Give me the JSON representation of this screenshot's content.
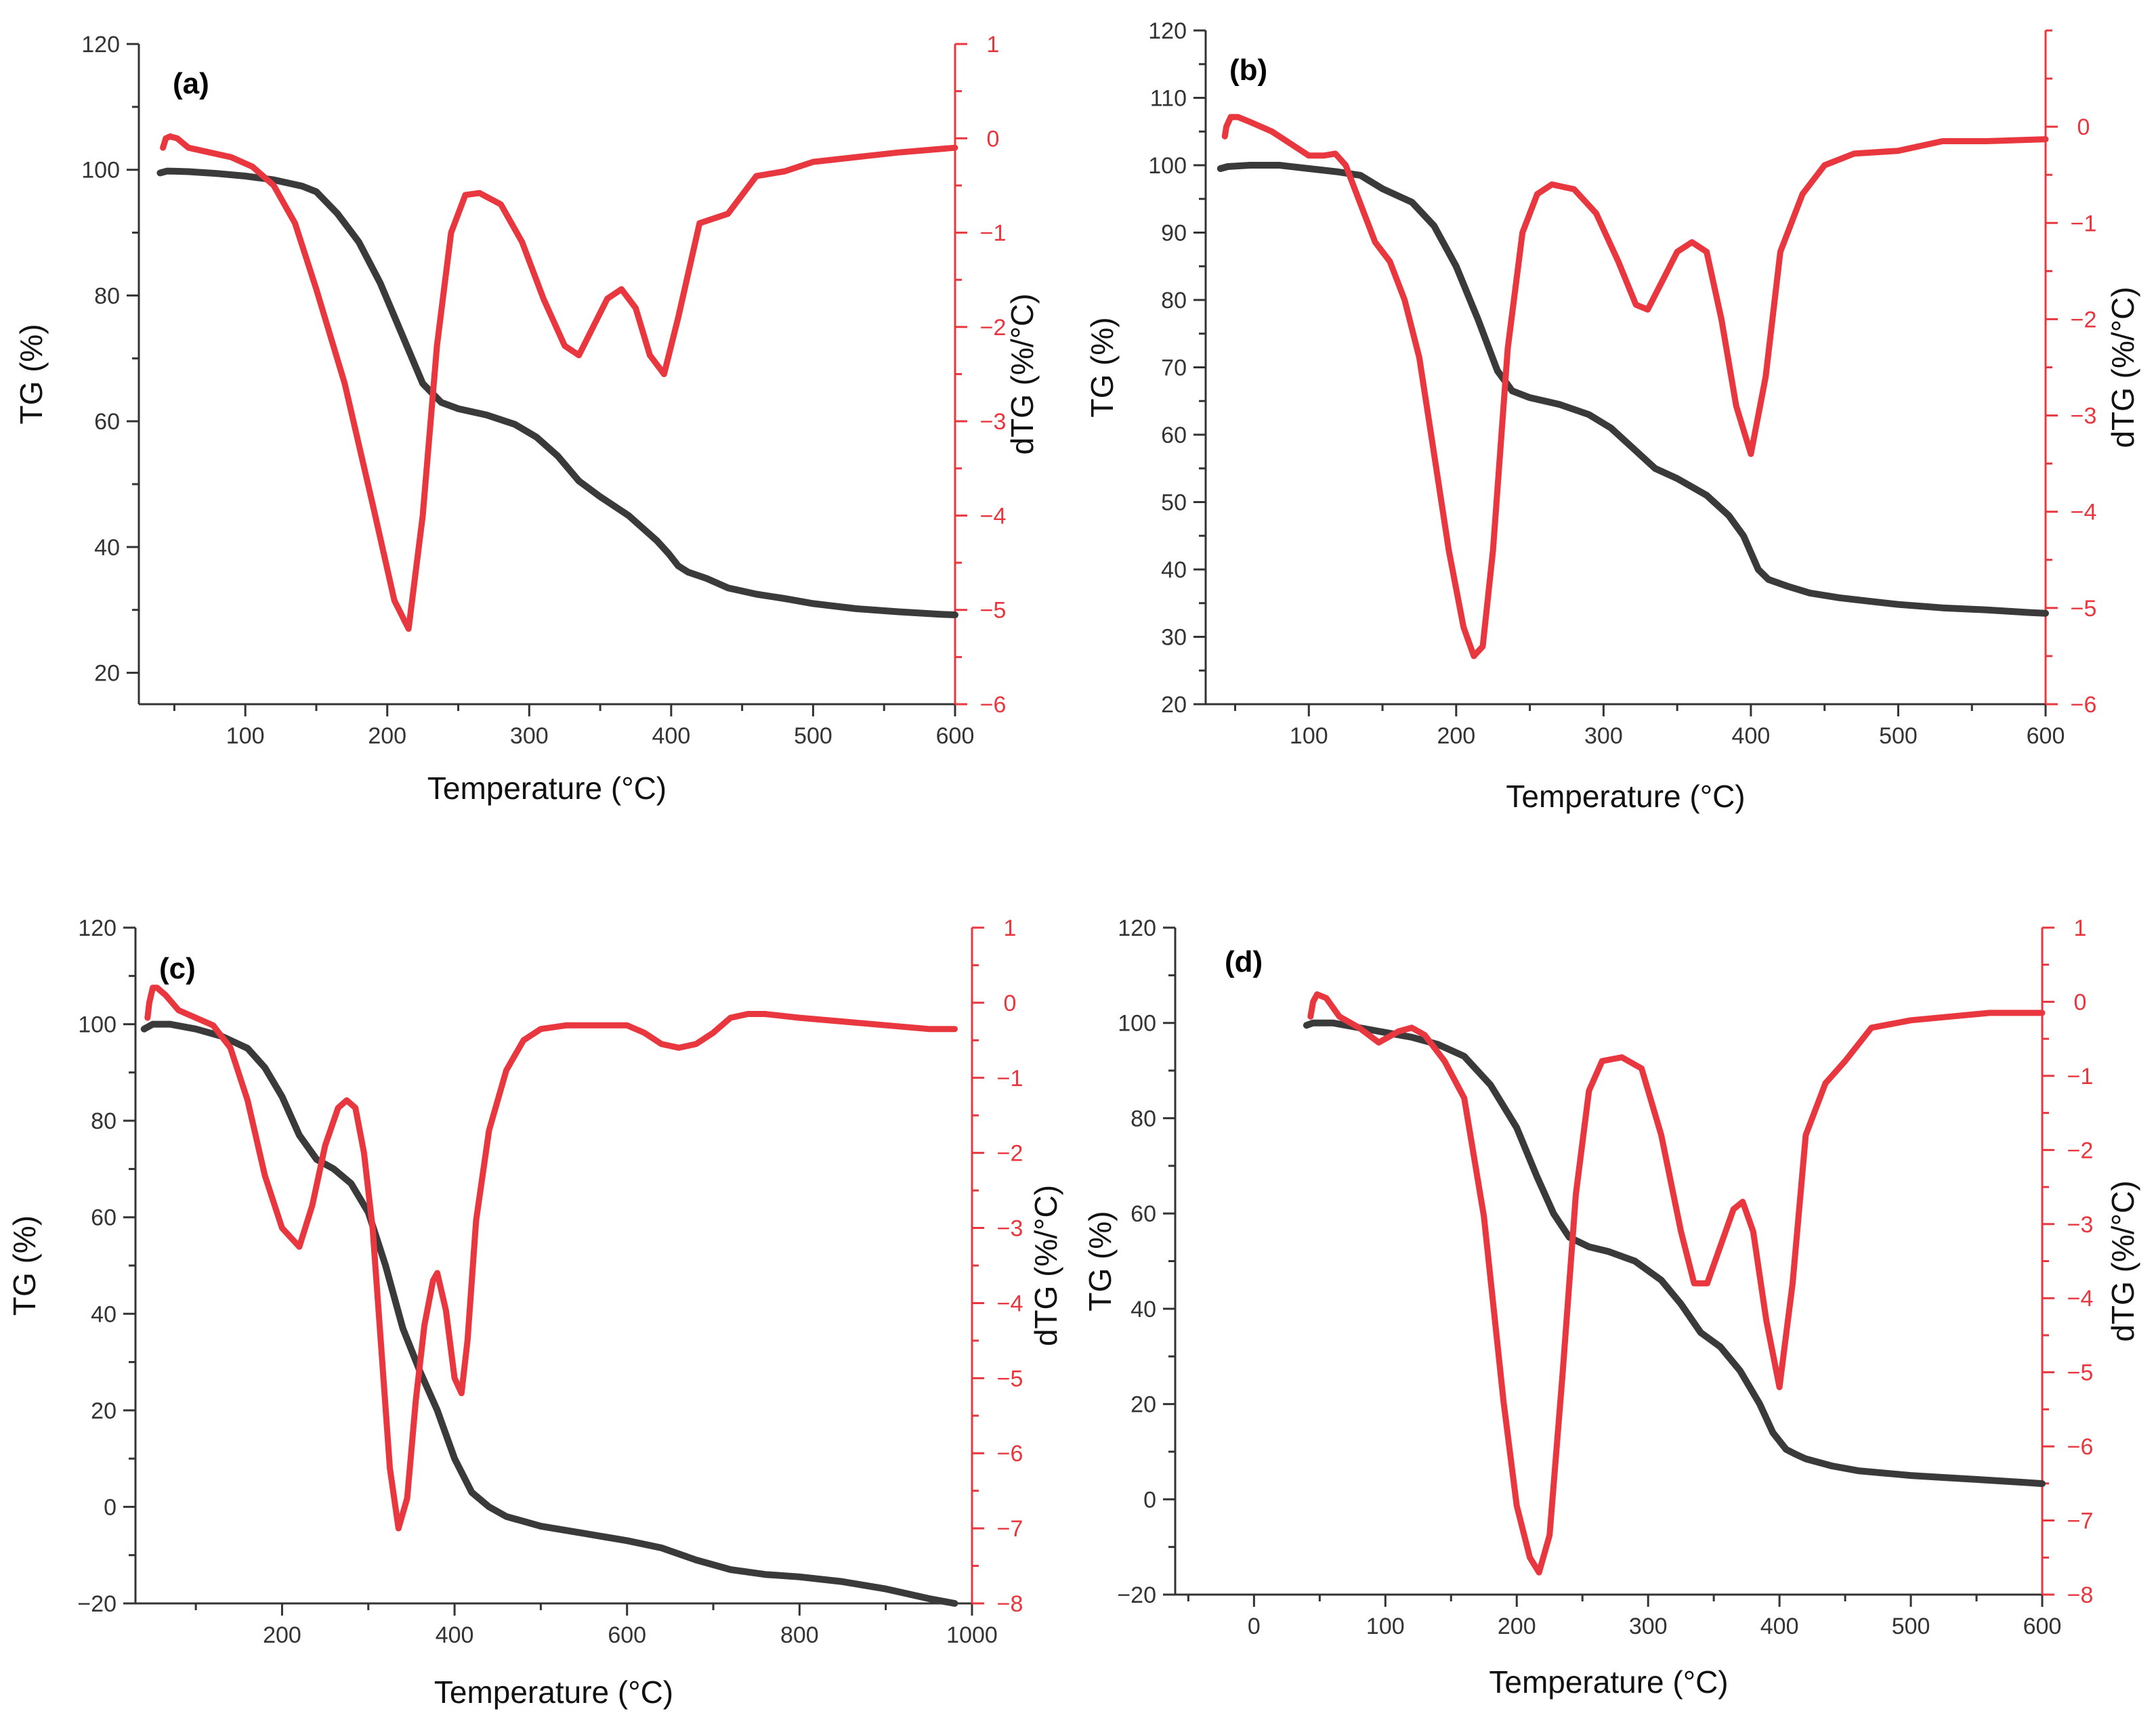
{
  "colors": {
    "tg": "#3a3a3a",
    "dtg": "#e8373e",
    "axis": "#333333"
  },
  "chart_data": [
    {
      "type": "line",
      "label": "(a)",
      "xlabel": "Temperature (°C)",
      "ylabel": "TG (%)",
      "y2label": "dTG (%/°C)",
      "xlim": [
        25,
        600
      ],
      "ylim": [
        15,
        120
      ],
      "y2lim": [
        -6,
        1
      ],
      "xticks": [
        100,
        200,
        300,
        400,
        500,
        600
      ],
      "yticks": [
        20,
        40,
        60,
        80,
        100,
        120
      ],
      "y2ticks": [
        -6,
        -5,
        -4,
        -3,
        -2,
        -1,
        0,
        1
      ],
      "series": [
        {
          "name": "TG",
          "axis": "left",
          "x": [
            40,
            45,
            60,
            80,
            100,
            120,
            140,
            150,
            165,
            180,
            195,
            210,
            225,
            238,
            250,
            270,
            290,
            305,
            320,
            335,
            350,
            370,
            390,
            398,
            405,
            412,
            425,
            440,
            460,
            480,
            500,
            530,
            560,
            590,
            600
          ],
          "y": [
            99.5,
            99.8,
            99.7,
            99.4,
            99.0,
            98.4,
            97.4,
            96.5,
            93.0,
            88.5,
            82.0,
            74.0,
            66.0,
            63.0,
            62.0,
            61.0,
            59.5,
            57.5,
            54.5,
            50.5,
            48.0,
            45.0,
            41.0,
            39.0,
            37.0,
            36.0,
            35.0,
            33.5,
            32.5,
            31.8,
            31.0,
            30.2,
            29.7,
            29.3,
            29.2
          ]
        },
        {
          "name": "dTG",
          "axis": "right",
          "x": [
            42,
            44,
            47,
            52,
            60,
            75,
            90,
            105,
            120,
            135,
            150,
            170,
            190,
            205,
            215,
            225,
            235,
            245,
            255,
            265,
            280,
            295,
            310,
            325,
            335,
            345,
            355,
            365,
            375,
            385,
            395,
            405,
            420,
            440,
            460,
            480,
            500,
            530,
            560,
            600
          ],
          "y": [
            -0.1,
            0.0,
            0.02,
            0.0,
            -0.1,
            -0.15,
            -0.2,
            -0.3,
            -0.5,
            -0.9,
            -1.6,
            -2.6,
            -3.9,
            -4.9,
            -5.2,
            -4.0,
            -2.2,
            -1.0,
            -0.6,
            -0.58,
            -0.7,
            -1.1,
            -1.7,
            -2.2,
            -2.3,
            -2.0,
            -1.7,
            -1.6,
            -1.8,
            -2.3,
            -2.5,
            -1.9,
            -0.9,
            -0.8,
            -0.4,
            -0.35,
            -0.25,
            -0.2,
            -0.15,
            -0.1
          ]
        }
      ]
    },
    {
      "type": "line",
      "label": "(b)",
      "xlabel": "Temperature (°C)",
      "ylabel": "TG (%)",
      "y2label": "dTG (%/°C)",
      "xlim": [
        30,
        600
      ],
      "ylim": [
        20,
        120
      ],
      "y2lim": [
        -6,
        1
      ],
      "xticks": [
        100,
        200,
        300,
        400,
        500,
        600
      ],
      "yticks": [
        20,
        30,
        40,
        50,
        60,
        70,
        80,
        90,
        100,
        110,
        120
      ],
      "y2ticks": [
        -6,
        -5,
        -4,
        -3,
        -2,
        -1,
        0
      ],
      "series": [
        {
          "name": "TG",
          "axis": "left",
          "x": [
            40,
            45,
            60,
            80,
            100,
            120,
            135,
            150,
            170,
            185,
            200,
            215,
            228,
            238,
            250,
            270,
            290,
            305,
            320,
            335,
            350,
            370,
            385,
            395,
            405,
            412,
            425,
            440,
            460,
            480,
            500,
            530,
            560,
            590,
            600
          ],
          "y": [
            99.5,
            99.8,
            100.0,
            100.0,
            99.5,
            99.0,
            98.5,
            96.5,
            94.5,
            91.0,
            85.0,
            77.0,
            69.5,
            66.5,
            65.5,
            64.5,
            63.0,
            61.0,
            58.0,
            55.0,
            53.5,
            51.0,
            48.0,
            45.0,
            40.0,
            38.5,
            37.5,
            36.5,
            35.8,
            35.3,
            34.8,
            34.3,
            34.0,
            33.6,
            33.5
          ]
        },
        {
          "name": "dTG",
          "axis": "right",
          "x": [
            43,
            44,
            47,
            52,
            60,
            75,
            90,
            100,
            110,
            118,
            125,
            135,
            145,
            155,
            165,
            175,
            185,
            195,
            205,
            212,
            218,
            225,
            235,
            245,
            255,
            265,
            280,
            295,
            310,
            322,
            330,
            340,
            350,
            360,
            370,
            380,
            390,
            400,
            410,
            420,
            435,
            450,
            470,
            500,
            530,
            560,
            600
          ],
          "y": [
            -0.1,
            0.0,
            0.1,
            0.1,
            0.05,
            -0.05,
            -0.2,
            -0.3,
            -0.3,
            -0.28,
            -0.4,
            -0.8,
            -1.2,
            -1.4,
            -1.8,
            -2.4,
            -3.4,
            -4.4,
            -5.2,
            -5.5,
            -5.4,
            -4.4,
            -2.3,
            -1.1,
            -0.7,
            -0.6,
            -0.65,
            -0.9,
            -1.4,
            -1.85,
            -1.9,
            -1.6,
            -1.3,
            -1.2,
            -1.3,
            -2.0,
            -2.9,
            -3.4,
            -2.6,
            -1.3,
            -0.7,
            -0.4,
            -0.28,
            -0.25,
            -0.15,
            -0.15,
            -0.13
          ]
        }
      ]
    },
    {
      "type": "line",
      "label": "(c)",
      "xlabel": "Temperature (°C)",
      "ylabel": "TG (%)",
      "y2label": "dTG (%/°C)",
      "xlim": [
        30,
        1000
      ],
      "ylim": [
        -20,
        120
      ],
      "y2lim": [
        -8,
        1
      ],
      "xticks": [
        200,
        400,
        600,
        800,
        1000
      ],
      "yticks": [
        -20,
        0,
        20,
        40,
        60,
        80,
        100,
        120
      ],
      "y2ticks": [
        -8,
        -7,
        -6,
        -5,
        -4,
        -3,
        -2,
        -1,
        0,
        1
      ],
      "series": [
        {
          "name": "TG",
          "axis": "left",
          "x": [
            40,
            50,
            70,
            100,
            130,
            160,
            180,
            200,
            220,
            240,
            260,
            280,
            300,
            320,
            340,
            360,
            380,
            400,
            420,
            440,
            460,
            500,
            550,
            600,
            640,
            680,
            720,
            760,
            800,
            850,
            900,
            950,
            980
          ],
          "y": [
            99.0,
            100.0,
            100.0,
            99.0,
            97.5,
            95.0,
            91.0,
            85.0,
            77.0,
            72.0,
            70.0,
            67.0,
            61.0,
            50.0,
            37.0,
            28.0,
            20.0,
            10.0,
            3.0,
            0.0,
            -2.0,
            -4.0,
            -5.5,
            -7.0,
            -8.5,
            -11.0,
            -13.0,
            -14.0,
            -14.5,
            -15.5,
            -17.0,
            -19.0,
            -20.0
          ]
        },
        {
          "name": "dTG",
          "axis": "right",
          "x": [
            44,
            46,
            50,
            55,
            65,
            80,
            100,
            120,
            140,
            160,
            180,
            200,
            220,
            235,
            250,
            265,
            275,
            285,
            295,
            305,
            315,
            325,
            335,
            345,
            355,
            365,
            375,
            380,
            390,
            400,
            408,
            415,
            425,
            440,
            460,
            480,
            500,
            530,
            560,
            600,
            620,
            640,
            660,
            680,
            700,
            720,
            740,
            760,
            800,
            850,
            900,
            950,
            980
          ],
          "y": [
            -0.2,
            0.0,
            0.2,
            0.2,
            0.1,
            -0.1,
            -0.2,
            -0.3,
            -0.6,
            -1.3,
            -2.3,
            -3.0,
            -3.25,
            -2.7,
            -1.9,
            -1.4,
            -1.3,
            -1.4,
            -2.0,
            -3.0,
            -4.6,
            -6.2,
            -7.0,
            -6.6,
            -5.3,
            -4.3,
            -3.7,
            -3.6,
            -4.1,
            -5.0,
            -5.2,
            -4.5,
            -2.9,
            -1.7,
            -0.9,
            -0.5,
            -0.35,
            -0.3,
            -0.3,
            -0.3,
            -0.4,
            -0.55,
            -0.6,
            -0.55,
            -0.4,
            -0.2,
            -0.15,
            -0.15,
            -0.2,
            -0.25,
            -0.3,
            -0.35,
            -0.35
          ]
        }
      ]
    },
    {
      "type": "line",
      "label": "(d)",
      "xlabel": "Temperature (°C)",
      "ylabel": "TG (%)",
      "y2label": "dTG (%/°C)",
      "xlim": [
        -60,
        600
      ],
      "ylim": [
        -20,
        120
      ],
      "y2lim": [
        -8,
        1
      ],
      "xticks": [
        0,
        100,
        200,
        300,
        400,
        500,
        600
      ],
      "yticks": [
        -20,
        0,
        20,
        40,
        60,
        80,
        100,
        120
      ],
      "y2ticks": [
        -8,
        -7,
        -6,
        -5,
        -4,
        -3,
        -2,
        -1,
        0,
        1
      ],
      "series": [
        {
          "name": "TG",
          "axis": "left",
          "x": [
            40,
            45,
            60,
            80,
            100,
            120,
            140,
            160,
            180,
            200,
            215,
            228,
            240,
            255,
            270,
            290,
            310,
            325,
            340,
            355,
            370,
            385,
            395,
            405,
            412,
            420,
            440,
            460,
            480,
            500,
            530,
            560,
            590,
            600
          ],
          "y": [
            99.5,
            100.0,
            100.0,
            99.0,
            98.0,
            97.0,
            95.5,
            93.0,
            87.0,
            78.0,
            68.0,
            60.0,
            55.0,
            53.0,
            52.0,
            50.0,
            46.0,
            41.0,
            35.0,
            32.0,
            27.0,
            20.0,
            14.0,
            10.5,
            9.5,
            8.5,
            7.0,
            6.0,
            5.5,
            5.0,
            4.5,
            4.0,
            3.5,
            3.3
          ]
        },
        {
          "name": "dTG",
          "axis": "right",
          "x": [
            43,
            45,
            48,
            55,
            65,
            80,
            95,
            110,
            120,
            130,
            145,
            160,
            175,
            190,
            200,
            210,
            217,
            225,
            235,
            245,
            255,
            265,
            280,
            295,
            310,
            325,
            335,
            345,
            355,
            365,
            372,
            380,
            390,
            400,
            410,
            420,
            435,
            450,
            470,
            500,
            530,
            560,
            600
          ],
          "y": [
            -0.2,
            0.0,
            0.1,
            0.05,
            -0.2,
            -0.35,
            -0.55,
            -0.4,
            -0.35,
            -0.45,
            -0.8,
            -1.3,
            -2.9,
            -5.4,
            -6.8,
            -7.5,
            -7.7,
            -7.2,
            -5.0,
            -2.6,
            -1.2,
            -0.8,
            -0.75,
            -0.9,
            -1.8,
            -3.1,
            -3.8,
            -3.8,
            -3.3,
            -2.8,
            -2.7,
            -3.1,
            -4.3,
            -5.2,
            -3.8,
            -1.8,
            -1.1,
            -0.8,
            -0.35,
            -0.25,
            -0.2,
            -0.15,
            -0.15
          ]
        }
      ]
    }
  ]
}
